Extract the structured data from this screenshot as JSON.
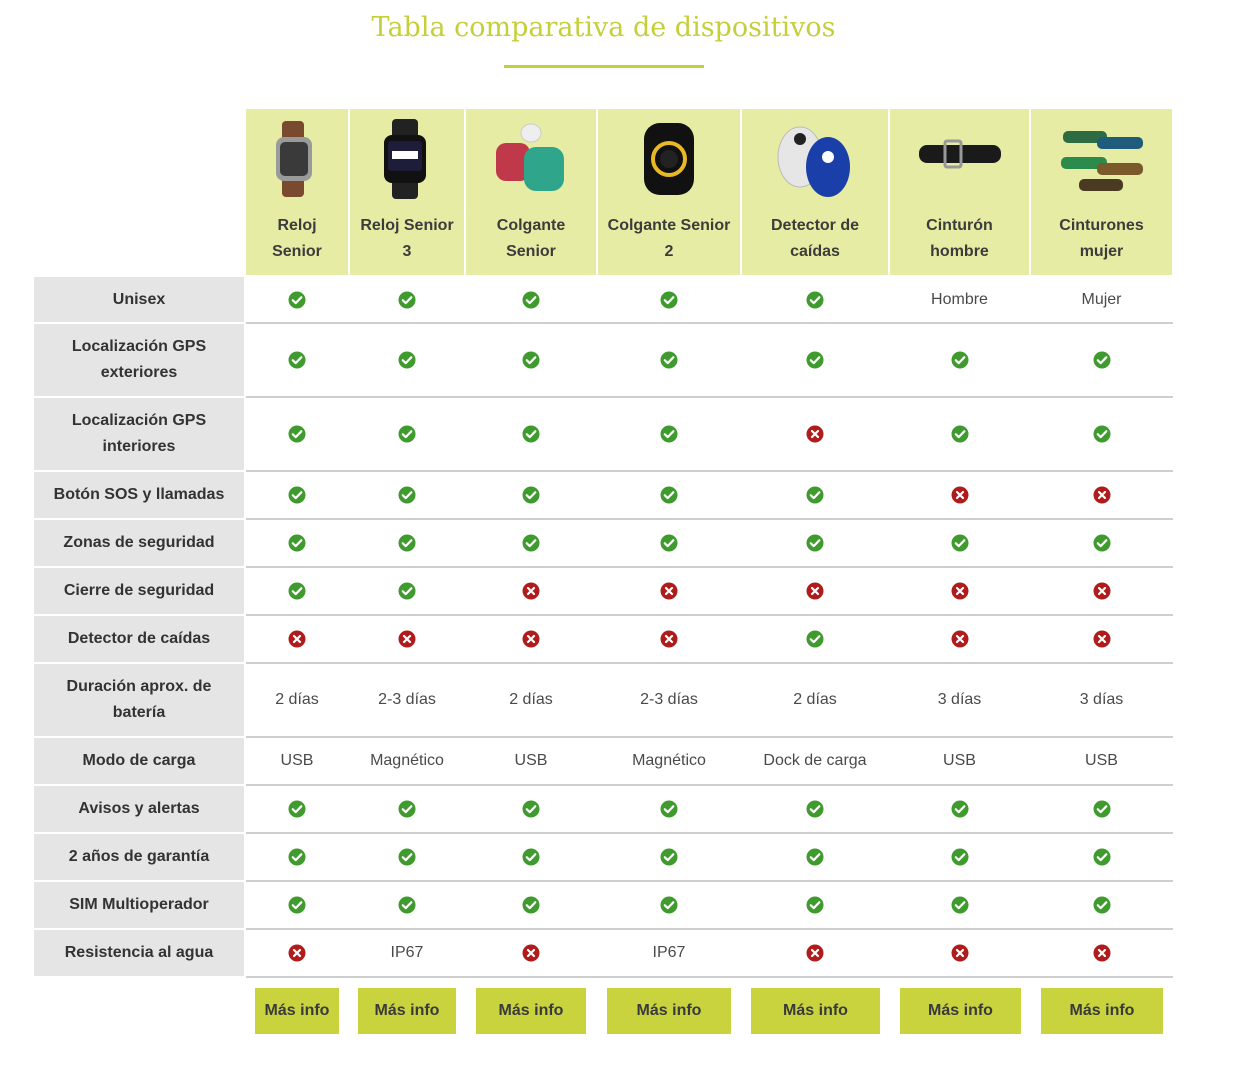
{
  "page": {
    "title": "Tabla comparativa de dispositivos",
    "accent_color": "#c5cf3a",
    "header_bg_color": "#e6eca4",
    "check_color": "#3f9b2e",
    "cross_color": "#b01c1c"
  },
  "devices": [
    {
      "name": "Reloj Senior",
      "image": "watch-brown-strap",
      "button": "Más info"
    },
    {
      "name": "Reloj Senior 3",
      "image": "watch-black-display",
      "button": "Más info"
    },
    {
      "name": "Colgante Senior",
      "image": "pendants-red-teal",
      "button": "Más info"
    },
    {
      "name": "Colgante Senior 2",
      "image": "pendant-black-ring",
      "button": "Más info"
    },
    {
      "name": "Detector de caídas",
      "image": "fall-detector-blue-white",
      "button": "Más info"
    },
    {
      "name": "Cinturón hombre",
      "image": "belt-black",
      "button": "Más info"
    },
    {
      "name": "Cinturones mujer",
      "image": "belts-colored",
      "button": "Más info"
    }
  ],
  "features": [
    {
      "label": "Unisex",
      "values": [
        "yes",
        "yes",
        "yes",
        "yes",
        "yes",
        "Hombre",
        "Mujer"
      ]
    },
    {
      "label": "Localización GPS exteriores",
      "values": [
        "yes",
        "yes",
        "yes",
        "yes",
        "yes",
        "yes",
        "yes"
      ]
    },
    {
      "label": "Localización GPS interiores",
      "values": [
        "yes",
        "yes",
        "yes",
        "yes",
        "no",
        "yes",
        "yes"
      ]
    },
    {
      "label": "Botón SOS y llamadas",
      "values": [
        "yes",
        "yes",
        "yes",
        "yes",
        "yes",
        "no",
        "no"
      ]
    },
    {
      "label": "Zonas de seguridad",
      "values": [
        "yes",
        "yes",
        "yes",
        "yes",
        "yes",
        "yes",
        "yes"
      ]
    },
    {
      "label": "Cierre de seguridad",
      "values": [
        "yes",
        "yes",
        "no",
        "no",
        "no",
        "no",
        "no"
      ]
    },
    {
      "label": "Detector de caídas",
      "values": [
        "no",
        "no",
        "no",
        "no",
        "yes",
        "no",
        "no"
      ]
    },
    {
      "label": "Duración aprox. de batería",
      "values": [
        "2 días",
        "2-3 días",
        "2 días",
        "2-3 días",
        "2 días",
        "3 días",
        "3 días"
      ]
    },
    {
      "label": "Modo de carga",
      "values": [
        "USB",
        "Magnético",
        "USB",
        "Magnético",
        "Dock de carga",
        "USB",
        "USB"
      ]
    },
    {
      "label": "Avisos y alertas",
      "values": [
        "yes",
        "yes",
        "yes",
        "yes",
        "yes",
        "yes",
        "yes"
      ]
    },
    {
      "label": "2 años de garantía",
      "values": [
        "yes",
        "yes",
        "yes",
        "yes",
        "yes",
        "yes",
        "yes"
      ]
    },
    {
      "label": "SIM Multioperador",
      "values": [
        "yes",
        "yes",
        "yes",
        "yes",
        "yes",
        "yes",
        "yes"
      ]
    },
    {
      "label": "Resistencia al agua",
      "values": [
        "no",
        "IP67",
        "no",
        "IP67",
        "no",
        "no",
        "no"
      ]
    }
  ]
}
